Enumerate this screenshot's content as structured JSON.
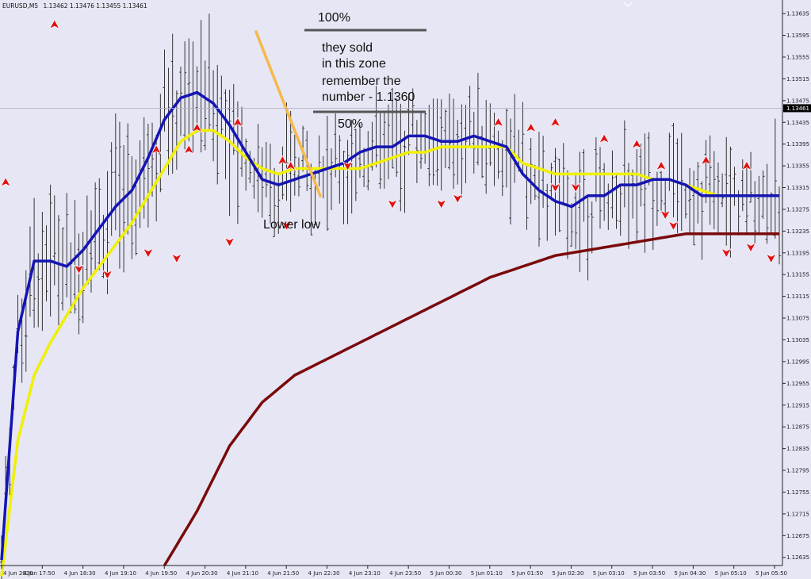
{
  "header": {
    "symbol": "EURUSD,M5",
    "ohlc": "1.13462 1.13476 1.13455 1.13461"
  },
  "chart_data": {
    "type": "line",
    "title": "EURUSD,M5",
    "ylim": [
      1.1262,
      1.1366
    ],
    "grid": false,
    "y_ticks": [
      "1.13635",
      "1.13595",
      "1.13555",
      "1.13515",
      "1.13475",
      "1.13435",
      "1.13395",
      "1.13355",
      "1.13315",
      "1.13275",
      "1.13235",
      "1.13195",
      "1.13155",
      "1.13115",
      "1.13075",
      "1.13035",
      "1.12995",
      "1.12955",
      "1.12915",
      "1.12875",
      "1.12835",
      "1.12795",
      "1.12755",
      "1.12715",
      "1.12675",
      "1.12635"
    ],
    "x_ticks": [
      "4 Jun 2020",
      "4 Jun 17:50",
      "4 Jun 18:30",
      "4 Jun 19:10",
      "4 Jun 19:50",
      "4 Jun 20:30",
      "4 Jun 21:10",
      "4 Jun 21:50",
      "4 Jun 22:30",
      "4 Jun 23:10",
      "4 Jun 23:50",
      "5 Jun 00:30",
      "5 Jun 01:10",
      "5 Jun 01:50",
      "5 Jun 02:30",
      "5 Jun 03:10",
      "5 Jun 03:50",
      "5 Jun 04:30",
      "5 Jun 05:10",
      "5 Jun 05:50"
    ],
    "current_price": "1.13461",
    "current_price_value": 1.13461,
    "series": [
      {
        "color": "#1414b4",
        "x": [
          0,
          4,
          8,
          12,
          16,
          20,
          24,
          28,
          32,
          36,
          40,
          44,
          48,
          52,
          56,
          60,
          64,
          68,
          72,
          76,
          80,
          84,
          88,
          92,
          96,
          100,
          104,
          108,
          112,
          116,
          120,
          124,
          128,
          132,
          136,
          140,
          144,
          148,
          152,
          156,
          160,
          164,
          168,
          172,
          176,
          180,
          184,
          188,
          191
        ],
        "values": [
          1.1263,
          1.1305,
          1.1318,
          1.1318,
          1.1317,
          1.132,
          1.1324,
          1.1328,
          1.1331,
          1.1337,
          1.1344,
          1.1348,
          1.1349,
          1.1347,
          1.1343,
          1.1338,
          1.1333,
          1.1332,
          1.1333,
          1.1334,
          1.1335,
          1.1336,
          1.1338,
          1.1339,
          1.1339,
          1.1341,
          1.1341,
          1.134,
          1.134,
          1.1341,
          1.134,
          1.1339,
          1.1334,
          1.1331,
          1.1329,
          1.1328,
          1.133,
          1.133,
          1.1332,
          1.1332,
          1.1333,
          1.1333,
          1.1332,
          1.133,
          1.133,
          1.133,
          1.133,
          1.133,
          1.133
        ]
      },
      {
        "color": "#f0f000",
        "x": [
          0,
          4,
          8,
          12,
          16,
          20,
          24,
          28,
          32,
          36,
          40,
          44,
          48,
          52,
          56,
          60,
          64,
          68,
          72,
          76,
          80,
          84,
          88,
          92,
          96,
          100,
          104,
          108,
          112,
          116,
          120,
          124,
          128,
          132,
          136,
          140,
          144,
          148,
          152,
          156,
          160,
          164,
          168,
          172,
          176,
          180,
          184,
          188,
          191
        ],
        "values": [
          1.126,
          1.1285,
          1.1297,
          1.1303,
          1.1308,
          1.1313,
          1.1317,
          1.1321,
          1.1325,
          1.133,
          1.1335,
          1.134,
          1.1342,
          1.1342,
          1.134,
          1.1337,
          1.1335,
          1.1334,
          1.1335,
          1.1335,
          1.1335,
          1.1335,
          1.1335,
          1.1336,
          1.1337,
          1.1338,
          1.1338,
          1.1339,
          1.1339,
          1.1339,
          1.1339,
          1.1339,
          1.1336,
          1.1335,
          1.1334,
          1.1334,
          1.1334,
          1.1334,
          1.1334,
          1.1334,
          1.1333,
          1.1333,
          1.1332,
          1.1331,
          1.133,
          1.133,
          1.133,
          1.133,
          1.133
        ]
      },
      {
        "color": "#7a0a0a",
        "x": [
          40,
          48,
          56,
          64,
          72,
          80,
          88,
          96,
          104,
          112,
          120,
          128,
          136,
          144,
          152,
          160,
          168,
          176,
          184,
          191
        ],
        "values": [
          1.1262,
          1.1272,
          1.1284,
          1.1292,
          1.1297,
          1.13,
          1.1303,
          1.1306,
          1.1309,
          1.1312,
          1.1315,
          1.1317,
          1.1319,
          1.132,
          1.1321,
          1.1322,
          1.1323,
          1.1323,
          1.1323,
          1.1323
        ]
      }
    ],
    "annotations": [
      {
        "text": "100%",
        "kind": "label"
      },
      {
        "text": "they sold",
        "kind": "label"
      },
      {
        "text": "in this zone",
        "kind": "label"
      },
      {
        "text": "remember the",
        "kind": "label"
      },
      {
        "text": "number - 1.1360",
        "kind": "label"
      },
      {
        "text": "50%",
        "kind": "label"
      },
      {
        "text": "Lower low",
        "kind": "label"
      }
    ],
    "fractal_up": [
      [
        1,
        1.1331
      ],
      [
        13,
        1.136
      ],
      [
        38,
        1.1337
      ],
      [
        46,
        1.1337
      ],
      [
        48,
        1.1341
      ],
      [
        58,
        1.1342
      ],
      [
        69,
        1.1335
      ],
      [
        71,
        1.1334
      ],
      [
        122,
        1.1342
      ],
      [
        130,
        1.1341
      ],
      [
        136,
        1.1342
      ],
      [
        148,
        1.1339
      ],
      [
        156,
        1.1338
      ],
      [
        162,
        1.1334
      ],
      [
        173,
        1.1335
      ],
      [
        183,
        1.1334
      ]
    ],
    "fractal_down": [
      [
        19,
        1.1318
      ],
      [
        26,
        1.1317
      ],
      [
        36,
        1.1321
      ],
      [
        43,
        1.132
      ],
      [
        56,
        1.1323
      ],
      [
        70,
        1.1326
      ],
      [
        85,
        1.1337
      ],
      [
        96,
        1.133
      ],
      [
        108,
        1.133
      ],
      [
        112,
        1.1331
      ],
      [
        136,
        1.1333
      ],
      [
        141,
        1.1333
      ],
      [
        163,
        1.1328
      ],
      [
        165,
        1.1326
      ],
      [
        178,
        1.1321
      ],
      [
        184,
        1.1322
      ],
      [
        189,
        1.132
      ]
    ]
  }
}
